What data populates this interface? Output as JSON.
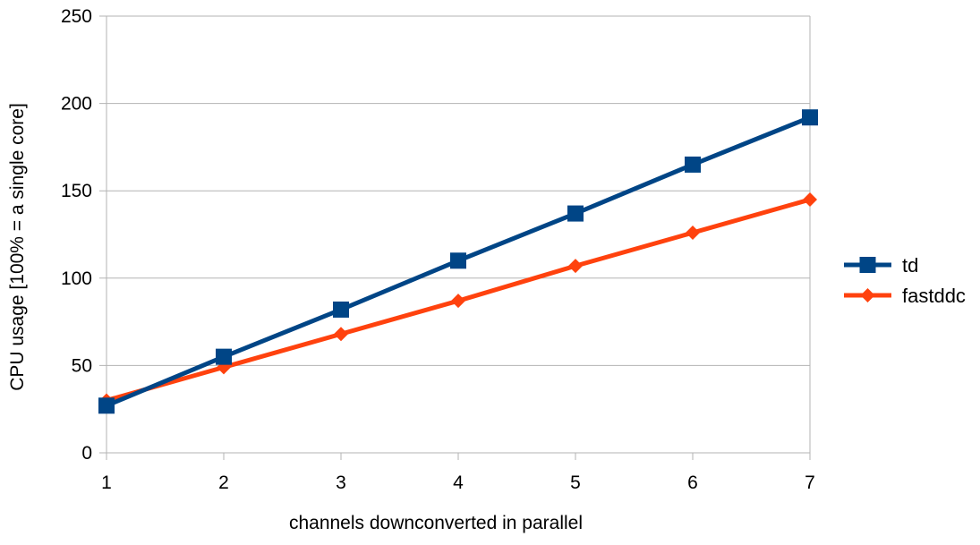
{
  "chart_data": {
    "type": "line",
    "title": "",
    "xlabel": "channels downconverted in parallel",
    "ylabel": "CPU usage [100% = a single core]",
    "x": [
      1,
      2,
      3,
      4,
      5,
      6,
      7
    ],
    "xlim": [
      1,
      7
    ],
    "ylim": [
      0,
      250
    ],
    "yticks": [
      0,
      50,
      100,
      150,
      200,
      250
    ],
    "grid": "horizontal",
    "legend": "right",
    "series": [
      {
        "name": "td",
        "color": "#004586",
        "marker": "square",
        "values": [
          27,
          55,
          82,
          110,
          137,
          165,
          192
        ]
      },
      {
        "name": "fastddc",
        "color": "#ff420e",
        "marker": "diamond",
        "values": [
          30,
          49,
          68,
          87,
          107,
          126,
          145
        ]
      }
    ]
  }
}
